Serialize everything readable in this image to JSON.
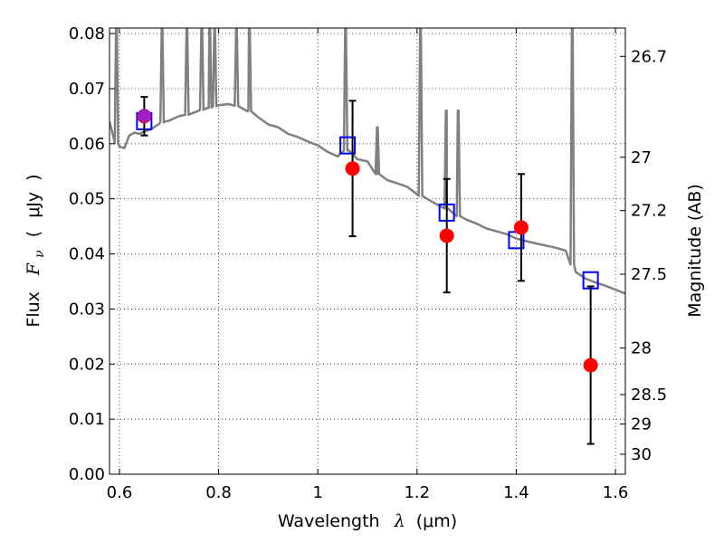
{
  "chart_data": {
    "type": "scatter",
    "xlabel": {
      "text": "Wavelength",
      "symbol": "λ",
      "unit": "(μm)"
    },
    "ylabel": {
      "text": "Flux",
      "symbol": "F",
      "subscript": "ν",
      "open": "(",
      "unit": "μJy",
      "close": ")"
    },
    "y2label": "Magnitude (AB)",
    "xlim": [
      0.58,
      1.62
    ],
    "ylim": [
      0.0,
      0.081
    ],
    "grid": true,
    "x_ticks": [
      0.6,
      0.8,
      1.0,
      1.2,
      1.4,
      1.6
    ],
    "x_tick_labels": [
      "0.6",
      "0.8",
      "1",
      "1.2",
      "1.4",
      "1.6"
    ],
    "y_ticks": [
      0.0,
      0.01,
      0.02,
      0.03,
      0.04,
      0.05,
      0.06,
      0.07,
      0.08
    ],
    "y_tick_labels": [
      "0.00",
      "0.01",
      "0.02",
      "0.03",
      "0.04",
      "0.05",
      "0.06",
      "0.07",
      "0.08"
    ],
    "mag_tick_labels": [
      "26.7",
      "27",
      "27.2",
      "27.5",
      "28",
      "28.5",
      "29",
      "30"
    ],
    "observed": {
      "color": "#ff0000",
      "x": [
        0.65,
        1.07,
        1.26,
        1.41,
        1.55
      ],
      "y": [
        0.065,
        0.0555,
        0.0433,
        0.0448,
        0.0198
      ],
      "yerr": [
        0.0035,
        0.0123,
        0.0103,
        0.0097,
        0.0143
      ]
    },
    "model_photometry": {
      "color": "#0000ff",
      "x": [
        0.65,
        1.06,
        1.26,
        1.4,
        1.55
      ],
      "y": [
        0.0641,
        0.0597,
        0.0475,
        0.0425,
        0.0352
      ]
    },
    "highlight_point": {
      "color": "#a020c0",
      "x": 0.65,
      "y": 0.0651
    },
    "sed_model": {
      "color": "#808080",
      "x": [
        0.58,
        0.59,
        0.6,
        0.61,
        0.62,
        0.63,
        0.64,
        0.65,
        0.66,
        0.67,
        0.68,
        0.69,
        0.7,
        0.72,
        0.74,
        0.76,
        0.78,
        0.8,
        0.82,
        0.84,
        0.86,
        0.88,
        0.9,
        0.92,
        0.94,
        0.96,
        0.98,
        1.0,
        1.02,
        1.04,
        1.06,
        1.08,
        1.1,
        1.12,
        1.14,
        1.16,
        1.18,
        1.2,
        1.22,
        1.24,
        1.26,
        1.28,
        1.3,
        1.32,
        1.34,
        1.36,
        1.38,
        1.4,
        1.42,
        1.44,
        1.46,
        1.48,
        1.5,
        1.52,
        1.54,
        1.56,
        1.58,
        1.6,
        1.62
      ],
      "y": [
        0.064,
        0.0605,
        0.0595,
        0.0592,
        0.0615,
        0.062,
        0.0618,
        0.0622,
        0.0625,
        0.063,
        0.0636,
        0.064,
        0.0642,
        0.065,
        0.0653,
        0.066,
        0.0665,
        0.067,
        0.0672,
        0.0668,
        0.066,
        0.0648,
        0.0635,
        0.063,
        0.0618,
        0.0612,
        0.0604,
        0.0597,
        0.0585,
        0.0577,
        0.059,
        0.0572,
        0.0568,
        0.0545,
        0.0534,
        0.0528,
        0.0522,
        0.0508,
        0.05,
        0.049,
        0.0482,
        0.047,
        0.0462,
        0.0455,
        0.0446,
        0.0441,
        0.0436,
        0.0428,
        0.0423,
        0.0419,
        0.0415,
        0.0411,
        0.0406,
        0.0367,
        0.0355,
        0.0348,
        0.0342,
        0.0335,
        0.0328
      ]
    },
    "emission_lines": [
      {
        "x": 0.594,
        "peak": 0.081
      },
      {
        "x": 0.686,
        "peak": 0.081
      },
      {
        "x": 0.736,
        "peak": 0.081
      },
      {
        "x": 0.766,
        "peak": 0.081
      },
      {
        "x": 0.782,
        "peak": 0.081
      },
      {
        "x": 0.792,
        "peak": 0.081
      },
      {
        "x": 0.836,
        "peak": 0.081
      },
      {
        "x": 0.862,
        "peak": 0.081
      },
      {
        "x": 1.056,
        "peak": 0.081
      },
      {
        "x": 1.12,
        "peak": 0.063
      },
      {
        "x": 1.207,
        "peak": 0.081
      },
      {
        "x": 1.259,
        "peak": 0.066
      },
      {
        "x": 1.283,
        "peak": 0.066
      },
      {
        "x": 1.513,
        "peak": 0.081
      }
    ]
  }
}
